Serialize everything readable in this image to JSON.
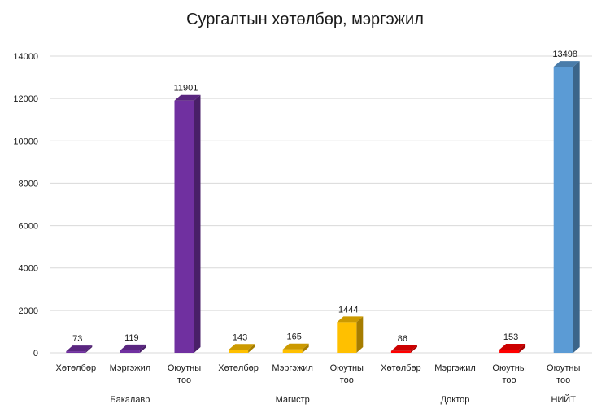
{
  "chart_data": {
    "type": "bar",
    "title": "Сургалтын хөтөлбөр, мэргэжил",
    "xlabel": "",
    "ylabel": "",
    "ylim": [
      0,
      14000
    ],
    "yticks": [
      0,
      2000,
      4000,
      6000,
      8000,
      10000,
      12000,
      14000
    ],
    "grid": true,
    "legend": "none",
    "style": "3d-column",
    "groups": [
      {
        "name": "Бакалавр",
        "color": "#7030A0",
        "items": [
          {
            "label": "Хөтөлбөр",
            "value": 73
          },
          {
            "label": "Мэргэжил",
            "value": 119
          },
          {
            "label": "Оюутны тоо",
            "value": 11901
          }
        ]
      },
      {
        "name": "Магистр",
        "color": "#FFC000",
        "items": [
          {
            "label": "Хөтөлбөр",
            "value": 143
          },
          {
            "label": "Мэргэжил",
            "value": 165
          },
          {
            "label": "Оюутны тоо",
            "value": 1444
          }
        ]
      },
      {
        "name": "Доктор",
        "color": "#FF0000",
        "items": [
          {
            "label": "Хөтөлбөр",
            "value": 86
          },
          {
            "label": "Мэргэжил",
            "value": null
          },
          {
            "label": "Оюутны тоо",
            "value": 153
          }
        ]
      },
      {
        "name": "НИЙТ",
        "color": "#5B9BD5",
        "items": [
          {
            "label": "Оюутны тоо",
            "value": 13498
          }
        ]
      }
    ]
  }
}
